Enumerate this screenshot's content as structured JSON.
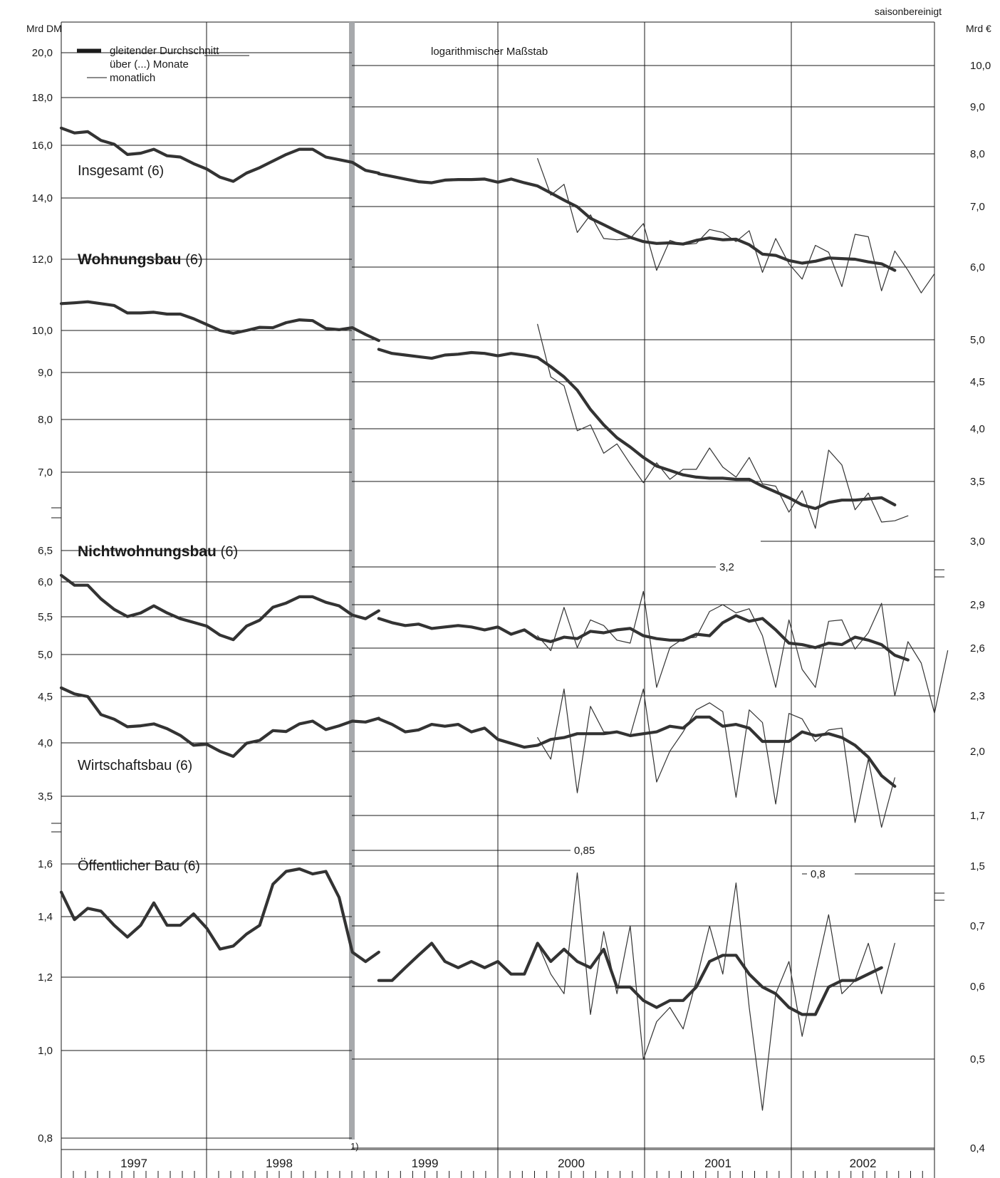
{
  "header": {
    "left_unit": "Mrd DM",
    "right_unit": "Mrd €",
    "seasonal_note": "saisonbereinigt",
    "scale_note": "logarithmischer Maßstab",
    "footnote_marker": "1)"
  },
  "legend": {
    "moving_avg_line1": "gleitender Durchschnitt",
    "moving_avg_line2": "über (...) Monate",
    "monthly": "monatlich"
  },
  "colors": {
    "line": "#333333",
    "grid": "#1a1a1a",
    "divider": "#a7a9ac"
  },
  "years": [
    "1997",
    "1998",
    "1999",
    "2000",
    "2001",
    "2002"
  ],
  "chart_data": [
    {
      "type": "line",
      "title": "Insgesamt (6)",
      "title_main": "Insgesamt",
      "title_paren": "(6)",
      "left_scale": "Mrd DM",
      "right_scale": "Mrd €",
      "scale": "log",
      "left_ticks": [
        "20,0",
        "18,0",
        "16,0",
        "14,0",
        "12,0"
      ],
      "right_ticks": [
        "10,0",
        "9,0",
        "8,0",
        "7,0",
        "6,0"
      ],
      "dm_ylim": [
        11.2,
        21.2
      ],
      "x_start": "1997-01",
      "monthly_start": "2000-01",
      "series": [
        {
          "name": "gleitender Durchschnitt über (...) Monate",
          "unit": "Mrd DM",
          "values": [
            16.6,
            16.4,
            16.45,
            16.1,
            15.95,
            15.55,
            15.6,
            15.75,
            15.5,
            15.45,
            15.2,
            15.0,
            14.7,
            14.55,
            14.85,
            15.05,
            15.3,
            15.55,
            15.75,
            15.75,
            15.45,
            15.35,
            15.25,
            14.95,
            14.85
          ]
        },
        {
          "name": "gleitender Durchschnitt über (...) Monate",
          "unit": "Mrd €",
          "values": [
            7.6,
            7.55,
            7.5,
            7.45,
            7.43,
            7.48,
            7.49,
            7.49,
            7.5,
            7.44,
            7.5,
            7.43,
            7.37,
            7.24,
            7.11,
            6.99,
            6.79,
            6.68,
            6.57,
            6.47,
            6.4,
            6.37,
            6.38,
            6.36,
            6.42,
            6.46,
            6.43,
            6.44,
            6.35,
            6.2,
            6.18,
            6.1,
            6.06,
            6.09,
            6.14,
            6.13,
            6.12,
            6.08,
            6.05,
            5.95
          ]
        },
        {
          "name": "monatlich",
          "unit": "Mrd €",
          "values": [
            7.9,
            7.2,
            7.4,
            6.55,
            6.85,
            6.45,
            6.43,
            6.45,
            6.7,
            5.95,
            6.42,
            6.35,
            6.37,
            6.6,
            6.55,
            6.4,
            6.58,
            5.92,
            6.45,
            6.05,
            5.82,
            6.34,
            6.23,
            5.71,
            6.52,
            6.48,
            5.65,
            6.25,
            5.95,
            5.62,
            5.9
          ]
        }
      ]
    },
    {
      "type": "line",
      "title": "Wohnungsbau (6)",
      "title_main": "Wohnungsbau",
      "title_paren": "(6)",
      "scale": "log",
      "left_ticks": [
        "10,0",
        "9,0",
        "8,0",
        "7,0"
      ],
      "right_ticks": [
        "5,0",
        "4,5",
        "4,0",
        "3,5",
        "3,0"
      ],
      "annotation": "3,2",
      "dm_ylim": [
        6.35,
        10.8
      ],
      "x_start": "1997-01",
      "monthly_start": "2000-01",
      "series": [
        {
          "name": "gleitender Durchschnitt über (...) Monate",
          "unit": "Mrd DM",
          "values": [
            10.7,
            10.72,
            10.75,
            10.7,
            10.65,
            10.45,
            10.45,
            10.47,
            10.42,
            10.42,
            10.3,
            10.15,
            10.0,
            9.93,
            10.0,
            10.08,
            10.07,
            10.2,
            10.27,
            10.25,
            10.05,
            10.02,
            10.07,
            9.9,
            9.75
          ]
        },
        {
          "name": "gleitender Durchschnitt über (...) Monate",
          "unit": "Mrd €",
          "values": [
            4.88,
            4.83,
            4.81,
            4.79,
            4.77,
            4.81,
            4.82,
            4.84,
            4.83,
            4.8,
            4.83,
            4.81,
            4.78,
            4.67,
            4.55,
            4.4,
            4.19,
            4.03,
            3.9,
            3.81,
            3.71,
            3.63,
            3.59,
            3.55,
            3.53,
            3.52,
            3.52,
            3.51,
            3.51,
            3.45,
            3.4,
            3.35,
            3.29,
            3.26,
            3.31,
            3.33,
            3.33,
            3.34,
            3.35,
            3.29
          ]
        },
        {
          "name": "monatlich",
          "unit": "Mrd €",
          "values": [
            5.2,
            4.55,
            4.45,
            3.97,
            4.03,
            3.75,
            3.84,
            3.65,
            3.48,
            3.66,
            3.51,
            3.6,
            3.6,
            3.8,
            3.62,
            3.53,
            3.71,
            3.47,
            3.45,
            3.23,
            3.41,
            3.1,
            3.78,
            3.64,
            3.25,
            3.39,
            3.15,
            3.16,
            3.2
          ]
        }
      ]
    },
    {
      "type": "line",
      "title": "Nichtwohnungsbau (6)",
      "title_main": "Nichtwohnungsbau",
      "title_paren": "(6)",
      "scale": "log",
      "left_ticks": [
        "6,5",
        "6,0",
        "5,5",
        "5,0",
        "4,5",
        "4,0",
        "3,5"
      ],
      "right_ticks": [
        "2,9",
        "2,6",
        "2,3",
        "2,0",
        "1,7"
      ],
      "annotation": "0,85",
      "dm_ylim": [
        3.3,
        6.7
      ],
      "x_start": "1997-01",
      "monthly_start": "2000-01",
      "series": [
        {
          "name": "gleitender Durchschnitt über (...) Monate",
          "unit": "Mrd DM",
          "values": [
            6.1,
            5.95,
            5.95,
            5.75,
            5.6,
            5.5,
            5.55,
            5.65,
            5.55,
            5.47,
            5.42,
            5.37,
            5.25,
            5.19,
            5.37,
            5.45,
            5.63,
            5.69,
            5.78,
            5.78,
            5.7,
            5.65,
            5.52,
            5.47,
            5.58
          ]
        },
        {
          "name": "gleitender Durchschnitt über (...) Monate",
          "unit": "Mrd €",
          "values": [
            2.8,
            2.77,
            2.75,
            2.76,
            2.73,
            2.74,
            2.75,
            2.74,
            2.72,
            2.74,
            2.69,
            2.72,
            2.66,
            2.64,
            2.67,
            2.66,
            2.71,
            2.7,
            2.72,
            2.73,
            2.68,
            2.66,
            2.65,
            2.65,
            2.69,
            2.68,
            2.77,
            2.82,
            2.78,
            2.8,
            2.72,
            2.63,
            2.62,
            2.6,
            2.63,
            2.62,
            2.67,
            2.65,
            2.62,
            2.55,
            2.52
          ]
        },
        {
          "name": "monatlich",
          "unit": "Mrd €",
          "values": [
            2.68,
            2.58,
            2.88,
            2.6,
            2.79,
            2.75,
            2.65,
            2.63,
            3.0,
            2.35,
            2.6,
            2.66,
            2.67,
            2.85,
            2.9,
            2.84,
            2.87,
            2.68,
            2.35,
            2.79,
            2.46,
            2.35,
            2.78,
            2.79,
            2.59,
            2.7,
            2.91,
            2.3,
            2.64,
            2.5,
            2.2,
            2.58
          ]
        }
      ]
    },
    {
      "type": "line",
      "title": "Wirtschaftsbau (6)",
      "title_main": "Wirtschaftsbau",
      "title_paren": "(6)",
      "scale": "log",
      "x_start": "1997-01",
      "monthly_start": "2000-01",
      "series": [
        {
          "name": "gleitender Durchschnitt über (...) Monate",
          "unit": "Mrd DM",
          "values": [
            4.6,
            4.53,
            4.5,
            4.3,
            4.25,
            4.17,
            4.18,
            4.2,
            4.15,
            4.08,
            3.98,
            3.99,
            3.92,
            3.87,
            4.0,
            4.03,
            4.13,
            4.12,
            4.2,
            4.23,
            4.14,
            4.18,
            4.23,
            4.22,
            4.26
          ]
        },
        {
          "name": "gleitender Durchschnitt über (...) Monate",
          "unit": "Mrd €",
          "values": [
            2.17,
            2.14,
            2.1,
            2.11,
            2.14,
            2.13,
            2.14,
            2.1,
            2.12,
            2.06,
            2.04,
            2.02,
            2.03,
            2.06,
            2.07,
            2.09,
            2.09,
            2.09,
            2.1,
            2.08,
            2.09,
            2.1,
            2.13,
            2.12,
            2.18,
            2.18,
            2.13,
            2.14,
            2.12,
            2.05,
            2.05,
            2.05,
            2.1,
            2.08,
            2.09,
            2.07,
            2.03,
            1.97,
            1.88,
            1.83
          ]
        },
        {
          "name": "monatlich",
          "unit": "Mrd €",
          "values": [
            2.07,
            1.96,
            2.34,
            1.8,
            2.24,
            2.1,
            2.1,
            2.08,
            2.34,
            1.85,
            2.0,
            2.1,
            2.22,
            2.26,
            2.21,
            1.78,
            2.22,
            2.15,
            1.75,
            2.2,
            2.17,
            2.05,
            2.11,
            2.12,
            1.67,
            1.96,
            1.65,
            1.87
          ]
        }
      ]
    },
    {
      "type": "line",
      "title": "Öffentlicher Bau (6)",
      "title_main": "Öffentlicher Bau",
      "title_paren": "(6)",
      "scale": "log",
      "left_ticks": [
        "1,6",
        "1,4",
        "1,2",
        "1,0",
        "0,8"
      ],
      "right_ticks": [
        "0,8",
        "0,7",
        "0,6",
        "0,5",
        "0,4"
      ],
      "annotation": "0,8",
      "dm_ylim": [
        0.77,
        1.71
      ],
      "x_start": "1997-01",
      "monthly_start": "2000-01",
      "series": [
        {
          "name": "gleitender Durchschnitt über (...) Monate",
          "unit": "Mrd DM",
          "values": [
            1.49,
            1.39,
            1.43,
            1.42,
            1.37,
            1.33,
            1.37,
            1.45,
            1.37,
            1.37,
            1.41,
            1.36,
            1.29,
            1.3,
            1.34,
            1.37,
            1.52,
            1.57,
            1.58,
            1.56,
            1.57,
            1.47,
            1.28,
            1.25,
            1.28
          ]
        },
        {
          "name": "gleitender Durchschnitt über (...) Monate",
          "unit": "Mrd €",
          "values": [
            0.61,
            0.61,
            0.63,
            0.65,
            0.67,
            0.64,
            0.63,
            0.64,
            0.63,
            0.64,
            0.62,
            0.62,
            0.67,
            0.64,
            0.66,
            0.64,
            0.63,
            0.66,
            0.6,
            0.6,
            0.58,
            0.57,
            0.58,
            0.58,
            0.6,
            0.64,
            0.65,
            0.65,
            0.62,
            0.6,
            0.59,
            0.57,
            0.56,
            0.56,
            0.6,
            0.61,
            0.61,
            0.62,
            0.63
          ]
        },
        {
          "name": "monatlich",
          "unit": "Mrd €",
          "values": [
            0.67,
            0.62,
            0.59,
            0.8,
            0.56,
            0.69,
            0.59,
            0.7,
            0.5,
            0.55,
            0.57,
            0.54,
            0.61,
            0.7,
            0.62,
            0.78,
            0.57,
            0.44,
            0.59,
            0.64,
            0.53,
            0.62,
            0.72,
            0.59,
            0.61,
            0.67,
            0.59,
            0.67
          ]
        }
      ]
    }
  ]
}
